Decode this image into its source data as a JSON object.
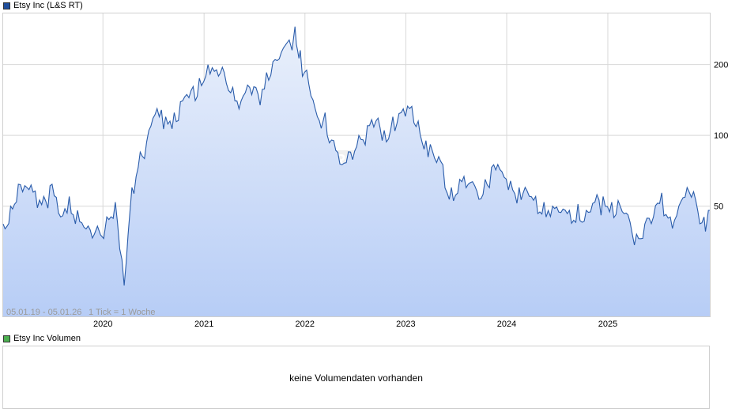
{
  "price_panel": {
    "legend_label": "Etsy Inc (L&S RT)",
    "legend_color": "#1f4e9c",
    "range_text": "05.01.19 - 05.01.26",
    "tick_text": "1 Tick = 1 Woche"
  },
  "volume_panel": {
    "legend_label": "Etsy Inc Volumen",
    "legend_color": "#4caf50",
    "message": "keine Volumendaten vorhanden"
  },
  "chart_data": {
    "type": "area",
    "title": "Etsy Inc (L&S RT)",
    "xlabel": "",
    "ylabel": "",
    "y_scale": "log",
    "ylim": [
      17,
      330
    ],
    "xlim": [
      "2019-01-05",
      "2026-01-05"
    ],
    "x_ticks": [
      "2020",
      "2021",
      "2022",
      "2023",
      "2024",
      "2025"
    ],
    "y_ticks": [
      50,
      100,
      200
    ],
    "grid": true,
    "line_color": "#2a5caa",
    "fill_color_top": "#eaf0fb",
    "fill_color_bottom": "#b7cdf6",
    "series": [
      {
        "name": "Etsy Inc (L&S RT)",
        "x": [
          "2019-01-05",
          "2019-02-01",
          "2019-03-01",
          "2019-04-01",
          "2019-05-01",
          "2019-06-01",
          "2019-07-01",
          "2019-08-01",
          "2019-09-01",
          "2019-10-01",
          "2019-11-01",
          "2019-12-01",
          "2020-01-15",
          "2020-02-15",
          "2020-03-18",
          "2020-04-15",
          "2020-05-15",
          "2020-06-15",
          "2020-07-15",
          "2020-08-15",
          "2020-09-15",
          "2020-10-15",
          "2020-11-15",
          "2020-12-15",
          "2021-01-15",
          "2021-02-15",
          "2021-03-15",
          "2021-04-15",
          "2021-05-15",
          "2021-06-15",
          "2021-07-15",
          "2021-08-15",
          "2021-09-15",
          "2021-10-15",
          "2021-11-26",
          "2021-12-15",
          "2022-01-15",
          "2022-02-15",
          "2022-03-15",
          "2022-04-15",
          "2022-05-15",
          "2022-06-15",
          "2022-07-15",
          "2022-08-15",
          "2022-09-15",
          "2022-10-15",
          "2022-11-15",
          "2022-12-15",
          "2023-01-15",
          "2023-02-15",
          "2023-03-15",
          "2023-04-15",
          "2023-05-15",
          "2023-06-15",
          "2023-07-15",
          "2023-08-15",
          "2023-09-15",
          "2023-10-15",
          "2023-11-15",
          "2023-12-15",
          "2024-01-15",
          "2024-02-15",
          "2024-03-15",
          "2024-04-15",
          "2024-05-15",
          "2024-06-15",
          "2024-07-15",
          "2024-08-15",
          "2024-09-15",
          "2024-10-15",
          "2024-11-15",
          "2024-12-15",
          "2025-01-15",
          "2025-02-15",
          "2025-03-15",
          "2025-04-15",
          "2025-05-15",
          "2025-06-15",
          "2025-07-15",
          "2025-08-15",
          "2025-09-15",
          "2025-10-15",
          "2025-11-15",
          "2025-12-15",
          "2026-01-05"
        ],
        "values": [
          42,
          50,
          62,
          60,
          58,
          55,
          62,
          45,
          55,
          48,
          40,
          38,
          45,
          52,
          23,
          60,
          85,
          105,
          130,
          120,
          125,
          140,
          155,
          175,
          200,
          190,
          185,
          160,
          140,
          160,
          150,
          185,
          210,
          235,
          290,
          230,
          165,
          120,
          125,
          95,
          75,
          85,
          100,
          110,
          115,
          105,
          120,
          125,
          130,
          115,
          95,
          80,
          75,
          60,
          65,
          62,
          58,
          65,
          75,
          70,
          64,
          60,
          58,
          55,
          52,
          50,
          47,
          48,
          51,
          48,
          52,
          55,
          52,
          50,
          46,
          38,
          42,
          45,
          57,
          45,
          50,
          60,
          53,
          45,
          48
        ]
      }
    ]
  }
}
